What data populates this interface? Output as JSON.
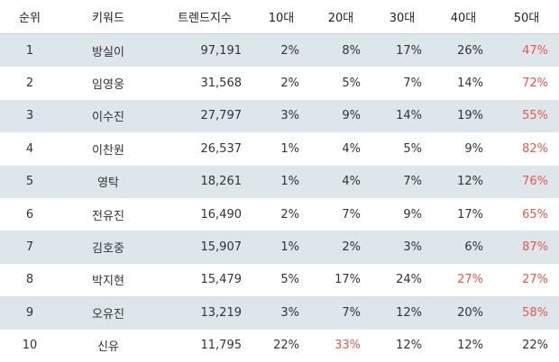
{
  "table": {
    "header": [
      "순위",
      "키워드",
      "트렌드지수",
      "10대",
      "20대",
      "30대",
      "40대",
      "50대"
    ],
    "rows": [
      [
        "1",
        "방실이",
        "97,191",
        "2%",
        "8%",
        "17%",
        "26%",
        "47%"
      ],
      [
        "2",
        "임영웅",
        "31,568",
        "2%",
        "5%",
        "7%",
        "14%",
        "72%"
      ],
      [
        "3",
        "이수진",
        "27,797",
        "3%",
        "9%",
        "14%",
        "19%",
        "55%"
      ],
      [
        "4",
        "이찬원",
        "26,537",
        "1%",
        "4%",
        "5%",
        "9%",
        "82%"
      ],
      [
        "5",
        "영탁",
        "18,261",
        "1%",
        "4%",
        "7%",
        "12%",
        "76%"
      ],
      [
        "6",
        "전유진",
        "16,490",
        "2%",
        "7%",
        "9%",
        "17%",
        "65%"
      ],
      [
        "7",
        "김호중",
        "15,907",
        "1%",
        "2%",
        "3%",
        "6%",
        "87%"
      ],
      [
        "8",
        "박지현",
        "15,479",
        "5%",
        "17%",
        "24%",
        "27%",
        "27%"
      ],
      [
        "9",
        "오유진",
        "13,219",
        "3%",
        "7%",
        "12%",
        "20%",
        "58%"
      ],
      [
        "10",
        "신유",
        "11,795",
        "22%",
        "33%",
        "12%",
        "12%",
        "22%"
      ]
    ],
    "highlight_color": "#e8594a",
    "stripe_color": "#dde6eb"
  }
}
